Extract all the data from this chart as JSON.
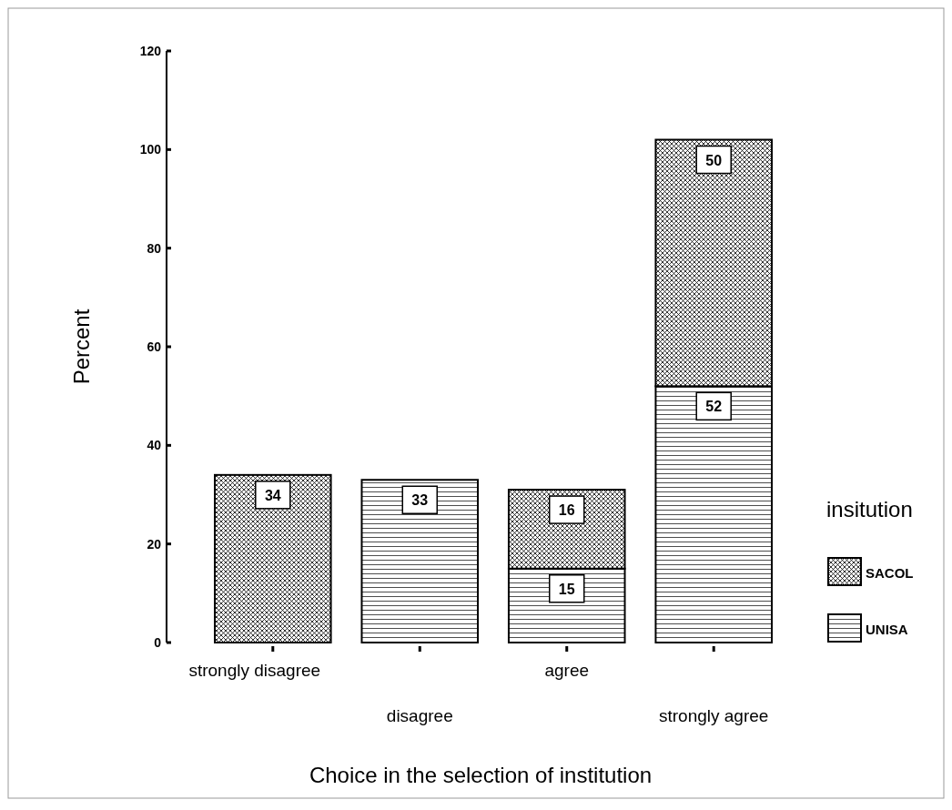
{
  "chart_data": {
    "type": "bar",
    "stacked": true,
    "xlabel": "Choice in the selection of institution",
    "ylabel": "Percent",
    "legend_title": "insitution",
    "legend": "right",
    "categories": [
      "strongly disagree",
      "disagree",
      "agree",
      "strongly agree"
    ],
    "series": [
      {
        "name": "UNISA",
        "color": "#000000",
        "values": [
          null,
          33,
          15,
          52
        ]
      },
      {
        "name": "SACOL",
        "color": "#000000",
        "values": [
          34,
          null,
          16,
          50
        ]
      }
    ],
    "ylim": [
      0,
      120
    ],
    "yticks": [
      0,
      20,
      40,
      60,
      80,
      100,
      120
    ],
    "data_labels": true
  }
}
